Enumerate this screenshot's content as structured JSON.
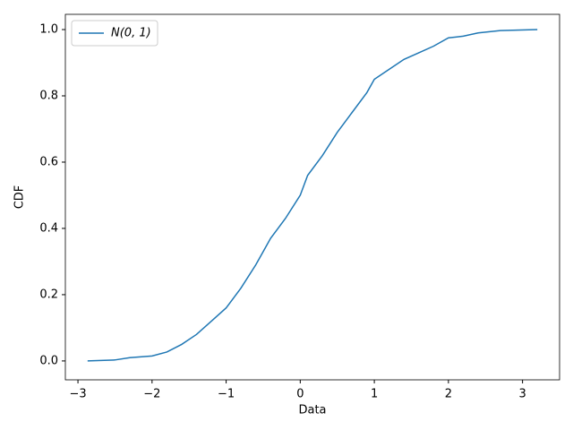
{
  "chart_data": {
    "type": "line",
    "xlabel": "Data",
    "ylabel": "CDF",
    "x": [
      -2.87,
      -2.5,
      -2.3,
      -2.0,
      -1.8,
      -1.6,
      -1.4,
      -1.2,
      -1.0,
      -0.8,
      -0.6,
      -0.5,
      -0.4,
      -0.2,
      0.0,
      0.1,
      0.3,
      0.5,
      0.7,
      0.9,
      1.0,
      1.2,
      1.4,
      1.6,
      1.8,
      2.0,
      2.2,
      2.4,
      2.7,
      3.2
    ],
    "series": [
      {
        "name": "N(0, 1)",
        "color": "#1f77b4",
        "values": [
          0.0,
          0.003,
          0.01,
          0.015,
          0.027,
          0.05,
          0.08,
          0.12,
          0.16,
          0.22,
          0.29,
          0.33,
          0.37,
          0.43,
          0.5,
          0.56,
          0.62,
          0.69,
          0.75,
          0.81,
          0.85,
          0.88,
          0.91,
          0.93,
          0.95,
          0.975,
          0.98,
          0.99,
          0.997,
          1.0
        ]
      }
    ],
    "xlim": [
      -3.17,
      3.5
    ],
    "xticks": [
      {
        "value": -3,
        "label": "−3"
      },
      {
        "value": -2,
        "label": "−2"
      },
      {
        "value": -1,
        "label": "−1"
      },
      0,
      1,
      2,
      3
    ],
    "ylim": [
      -0.057,
      1.046
    ],
    "yticks": [
      {
        "value": 0,
        "label": "0.0"
      },
      0.2,
      0.4,
      0.6,
      0.8,
      {
        "value": 1,
        "label": "1.0"
      }
    ],
    "legend": "upper left"
  }
}
